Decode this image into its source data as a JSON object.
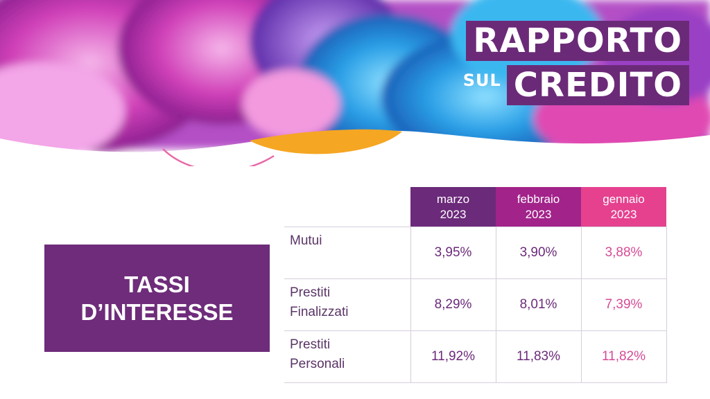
{
  "title": {
    "line1": "RAPPORTO",
    "sul": "SUL",
    "line2": "CREDITO"
  },
  "section": {
    "line1": "TASSI",
    "line2": "D’INTERESSE"
  },
  "colors": {
    "purple_dark": "#6b2a7a",
    "magenta": "#a2238a",
    "pink": "#e5418f",
    "orange": "#f5a623"
  },
  "table": {
    "columns": [
      {
        "month": "marzo",
        "year": "2023"
      },
      {
        "month": "febbraio",
        "year": "2023"
      },
      {
        "month": "gennaio",
        "year": "2023"
      }
    ],
    "rows": [
      {
        "label1": "Mutui",
        "label2": "",
        "values": [
          "3,95%",
          "3,90%",
          "3,88%"
        ]
      },
      {
        "label1": "Prestiti",
        "label2": "Finalizzati",
        "values": [
          "8,29%",
          "8,01%",
          "7,39%"
        ]
      },
      {
        "label1": "Prestiti",
        "label2": "Personali",
        "values": [
          "11,92%",
          "11,83%",
          "11,82%"
        ]
      }
    ]
  }
}
